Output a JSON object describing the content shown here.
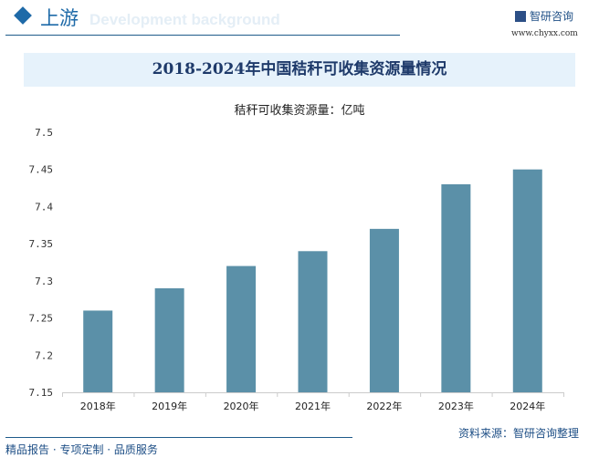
{
  "header": {
    "section": "上游",
    "background_text": "Development background",
    "logo": "智研咨询",
    "url": "www.chyxx.com"
  },
  "colors": {
    "bar": "#5b90a8",
    "accent": "#1e6aa8"
  },
  "chart_data": {
    "type": "bar",
    "title": "2018-2024年中国秸秆可收集资源量情况",
    "ylabel": "秸秆可收集资源量：亿吨",
    "categories": [
      "2018年",
      "2019年",
      "2020年",
      "2021年",
      "2022年",
      "2023年",
      "2024年"
    ],
    "values": [
      7.26,
      7.29,
      7.32,
      7.34,
      7.37,
      7.43,
      7.45
    ],
    "ylim": [
      7.15,
      7.5
    ],
    "yticks": [
      "7.15",
      "7.2",
      "7.25",
      "7.3",
      "7.35",
      "7.4",
      "7.45",
      "7.5"
    ],
    "grid": false
  },
  "footer": {
    "left": "精品报告 · 专项定制 · 品质服务",
    "source": "资料来源：智研咨询整理"
  }
}
